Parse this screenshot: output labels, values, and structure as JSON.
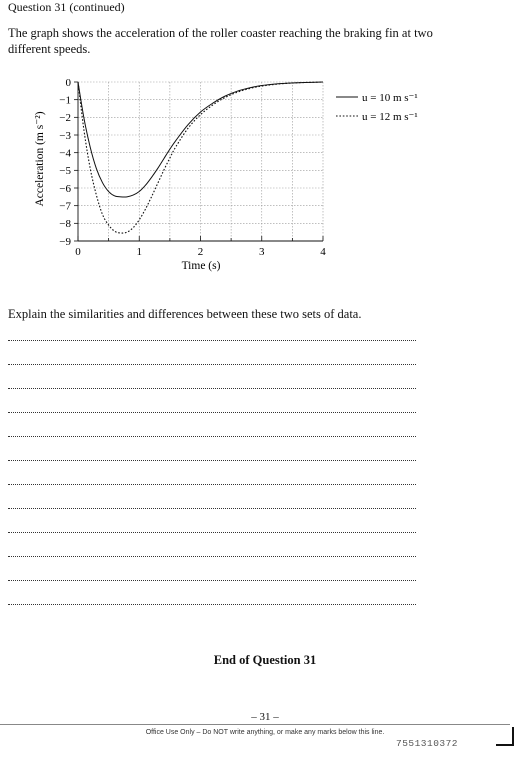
{
  "question_heading": "Question 31 (continued)",
  "intro_text": "The graph shows the acceleration of the roller coaster reaching the braking fin at two different speeds.",
  "chart_data": {
    "type": "line",
    "xlabel": "Time (s)",
    "ylabel": "Acceleration (m s⁻²)",
    "xlim": [
      0,
      4
    ],
    "ylim": [
      -9,
      0
    ],
    "xticks": [
      "0",
      "1",
      "2",
      "3",
      "4"
    ],
    "yticks": [
      "0",
      "−1",
      "−2",
      "−3",
      "−4",
      "−5",
      "−6",
      "−7",
      "−8",
      "−9"
    ],
    "grid": true,
    "legend_position": "right",
    "series": [
      {
        "name": "u = 10 m s⁻¹",
        "style": "solid",
        "x": [
          0,
          0.1,
          0.2,
          0.3,
          0.4,
          0.5,
          0.6,
          0.7,
          0.8,
          0.9,
          1.0,
          1.1,
          1.2,
          1.3,
          1.4,
          1.5,
          1.6,
          1.8,
          2.0,
          2.2,
          2.4,
          2.6,
          2.8,
          3.0,
          3.2,
          3.4,
          3.6,
          3.8,
          4.0
        ],
        "y": [
          0,
          -2.1,
          -3.7,
          -4.9,
          -5.7,
          -6.2,
          -6.45,
          -6.5,
          -6.5,
          -6.4,
          -6.2,
          -5.85,
          -5.4,
          -4.9,
          -4.35,
          -3.8,
          -3.3,
          -2.4,
          -1.7,
          -1.2,
          -0.8,
          -0.52,
          -0.33,
          -0.2,
          -0.12,
          -0.07,
          -0.04,
          -0.02,
          0
        ]
      },
      {
        "name": "u = 12 m s⁻¹",
        "style": "dotted",
        "x": [
          0,
          0.1,
          0.2,
          0.3,
          0.4,
          0.5,
          0.6,
          0.7,
          0.8,
          0.9,
          1.0,
          1.1,
          1.2,
          1.3,
          1.4,
          1.5,
          1.6,
          1.8,
          2.0,
          2.2,
          2.4,
          2.6,
          2.8,
          3.0,
          3.2,
          3.4,
          3.6,
          3.8,
          4.0
        ],
        "y": [
          0,
          -2.8,
          -4.9,
          -6.4,
          -7.5,
          -8.1,
          -8.45,
          -8.55,
          -8.5,
          -8.25,
          -7.8,
          -7.2,
          -6.5,
          -5.75,
          -5.0,
          -4.3,
          -3.65,
          -2.6,
          -1.85,
          -1.3,
          -0.88,
          -0.58,
          -0.37,
          -0.23,
          -0.14,
          -0.08,
          -0.04,
          -0.02,
          0
        ]
      }
    ]
  },
  "instruction": "Explain the similarities and differences between these two sets of data.",
  "answer_line_count": 12,
  "end_text": "End of Question 31",
  "page_number": "– 31 –",
  "office_note": "Office Use Only – Do NOT write anything, or make any marks below this line.",
  "barcode_number": "7551310372"
}
